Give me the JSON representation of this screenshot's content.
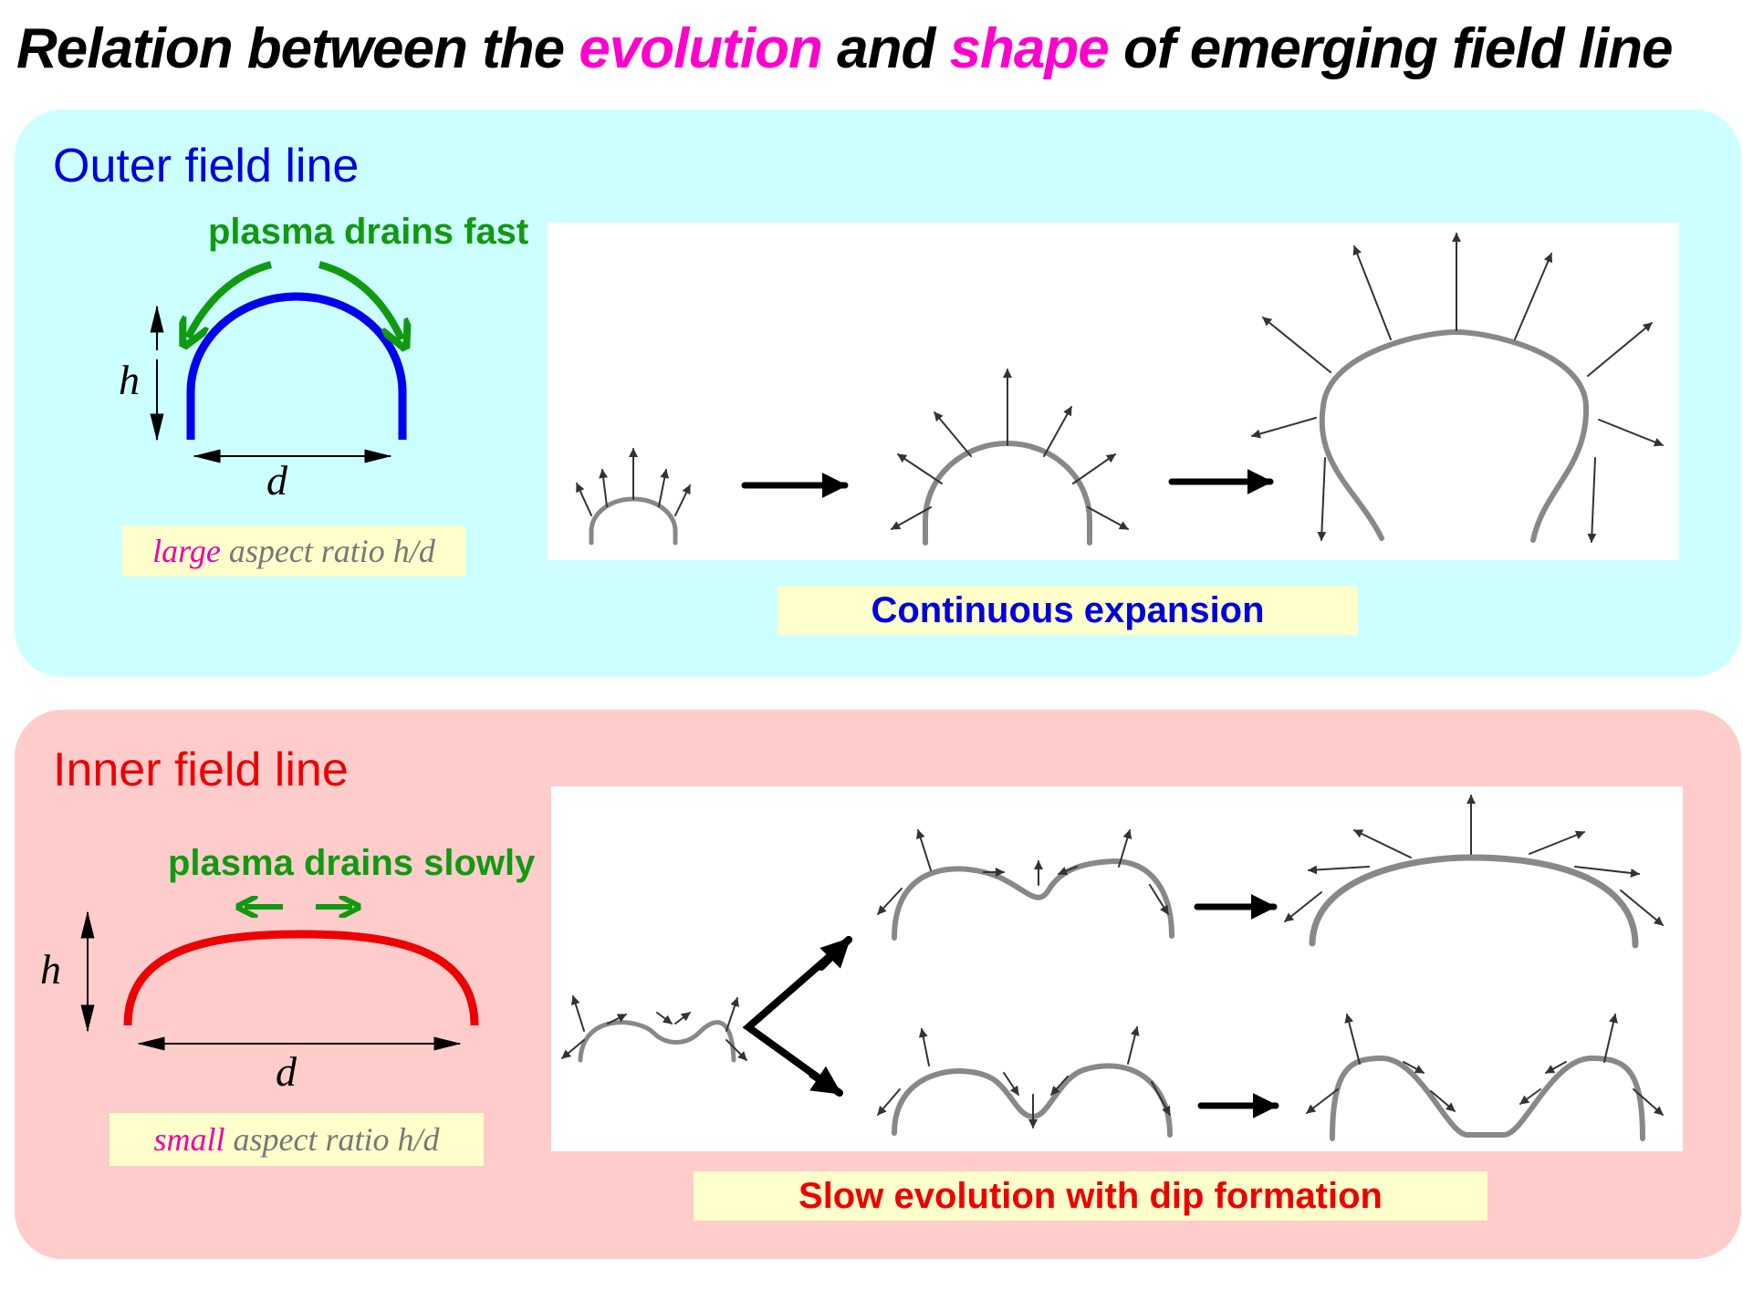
{
  "title": {
    "part1": "Relation between the ",
    "word1": "evolution",
    "part2": " and ",
    "word2": "shape",
    "part3": " of emerging field line"
  },
  "outer": {
    "heading": "Outer field line",
    "drain_label": "plasma drains fast",
    "h_label": "h",
    "d_label": "d",
    "ratio_adjective": "large",
    "ratio_text": " aspect ratio h/d",
    "caption": "Continuous expansion"
  },
  "inner": {
    "heading": "Inner field line",
    "drain_label": "plasma drains slowly",
    "h_label": "h",
    "d_label": "d",
    "ratio_adjective": "small",
    "ratio_text": " aspect ratio h/d",
    "caption": "Slow evolution with dip formation"
  },
  "colors": {
    "outer_background": "#ccffff",
    "inner_background": "#ffcccc",
    "outer_heading": "#0000dd",
    "inner_heading": "#ee0000",
    "outer_loop": "#0000ee",
    "inner_loop": "#ee0000",
    "drain_arrows": "#119911",
    "highlight": "#ff00cc",
    "caption_background": "#ffffcc",
    "field_line_gray": "#888888"
  }
}
